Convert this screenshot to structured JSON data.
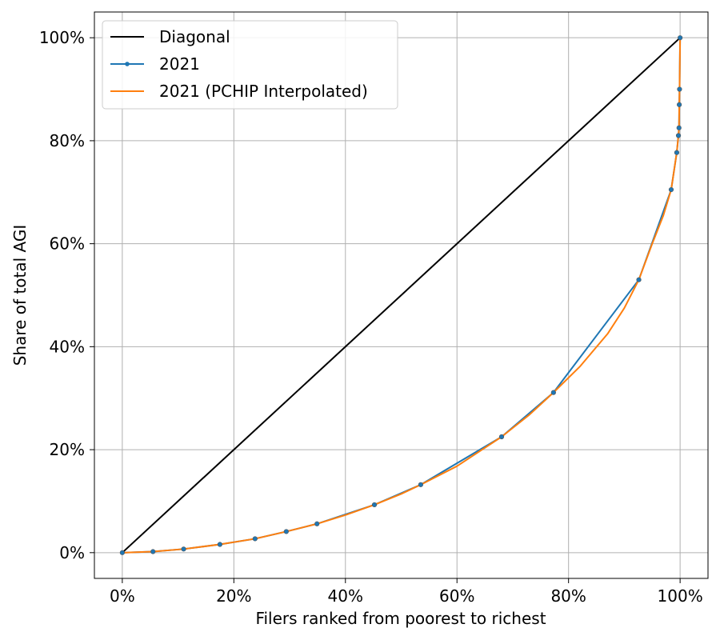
{
  "chart_data": {
    "type": "line",
    "title": "",
    "xlabel": "Filers ranked from poorest to richest",
    "ylabel": "Share of total AGI",
    "xlim": [
      -0.05,
      1.05
    ],
    "ylim": [
      -0.05,
      1.05
    ],
    "x_ticks": [
      0,
      0.2,
      0.4,
      0.6,
      0.8,
      1.0
    ],
    "x_tick_labels": [
      "0%",
      "20%",
      "40%",
      "60%",
      "80%",
      "100%"
    ],
    "y_ticks": [
      0,
      0.2,
      0.4,
      0.6,
      0.8,
      1.0
    ],
    "y_tick_labels": [
      "0%",
      "20%",
      "40%",
      "60%",
      "80%",
      "100%"
    ],
    "grid": true,
    "legend_position": "top-left",
    "series": [
      {
        "name": "Diagonal",
        "color": "#000000",
        "markers": false,
        "points": [
          [
            0,
            0
          ],
          [
            1,
            1
          ]
        ]
      },
      {
        "name": "2021",
        "color": "#1f77b4",
        "markers": true,
        "points": [
          [
            0.0,
            0.0
          ],
          [
            0.055,
            0.002
          ],
          [
            0.11,
            0.007
          ],
          [
            0.175,
            0.016
          ],
          [
            0.238,
            0.027
          ],
          [
            0.294,
            0.041
          ],
          [
            0.349,
            0.056
          ],
          [
            0.452,
            0.093
          ],
          [
            0.535,
            0.132
          ],
          [
            0.68,
            0.225
          ],
          [
            0.773,
            0.311
          ],
          [
            0.926,
            0.53
          ],
          [
            0.984,
            0.705
          ],
          [
            0.994,
            0.777
          ],
          [
            0.997,
            0.81
          ],
          [
            0.998,
            0.825
          ],
          [
            0.9985,
            0.87
          ],
          [
            0.999,
            0.9
          ],
          [
            1.0,
            1.0
          ]
        ]
      },
      {
        "name": "2021 (PCHIP Interpolated)",
        "color": "#ff7f0e",
        "markers": false,
        "points": [
          [
            0.0,
            0.0
          ],
          [
            0.055,
            0.002
          ],
          [
            0.11,
            0.007
          ],
          [
            0.175,
            0.016
          ],
          [
            0.238,
            0.027
          ],
          [
            0.294,
            0.041
          ],
          [
            0.349,
            0.056
          ],
          [
            0.4,
            0.073
          ],
          [
            0.452,
            0.093
          ],
          [
            0.5,
            0.114
          ],
          [
            0.535,
            0.132
          ],
          [
            0.6,
            0.168
          ],
          [
            0.68,
            0.225
          ],
          [
            0.73,
            0.268
          ],
          [
            0.773,
            0.311
          ],
          [
            0.82,
            0.361
          ],
          [
            0.87,
            0.425
          ],
          [
            0.9,
            0.475
          ],
          [
            0.926,
            0.53
          ],
          [
            0.95,
            0.6
          ],
          [
            0.97,
            0.655
          ],
          [
            0.984,
            0.705
          ],
          [
            0.994,
            0.777
          ],
          [
            0.997,
            0.81
          ],
          [
            0.998,
            0.825
          ],
          [
            0.9985,
            0.87
          ],
          [
            0.999,
            0.9
          ],
          [
            1.0,
            1.0
          ]
        ]
      }
    ]
  }
}
